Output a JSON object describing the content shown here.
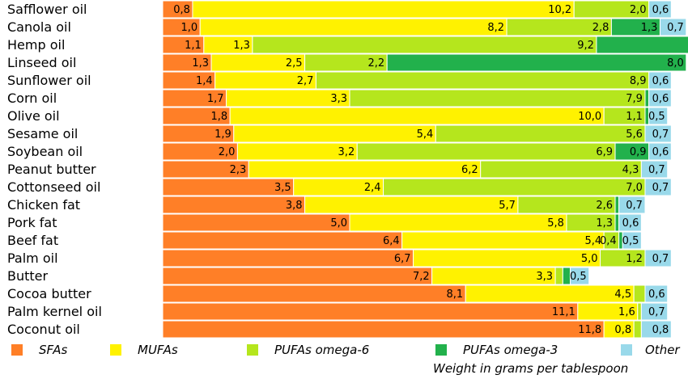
{
  "chart_data": {
    "type": "bar",
    "orientation": "horizontal",
    "stacked": true,
    "xlabel": "Weight in grams per tablespoon",
    "legend_position": "bottom",
    "grid": false,
    "categories": [
      "Safflower oil",
      "Canola oil",
      "Hemp oil",
      "Linseed oil",
      "Sunflower oil",
      "Corn oil",
      "Olive oil",
      "Sesame oil",
      "Soybean oil",
      "Peanut butter",
      "Cottonseed oil",
      "Chicken fat",
      "Pork fat",
      "Beef fat",
      "Palm oil",
      "Butter",
      "Cocoa butter",
      "Palm kernel oil",
      "Coconut oil"
    ],
    "series": [
      {
        "name": "SFAs",
        "color": "#ff7f27",
        "values": [
          0.8,
          1.0,
          1.1,
          1.3,
          1.4,
          1.7,
          1.8,
          1.9,
          2.0,
          2.3,
          3.5,
          3.8,
          5.0,
          6.4,
          6.7,
          7.2,
          8.1,
          11.1,
          11.8
        ],
        "labels": [
          "0,8",
          "1,0",
          "1,1",
          "1,3",
          "1,4",
          "1,7",
          "1,8",
          "1,9",
          "2,0",
          "2,3",
          "3,5",
          "3,8",
          "5,0",
          "6,4",
          "6,7",
          "7,2",
          "8,1",
          "11,1",
          "11,8"
        ]
      },
      {
        "name": "MUFAs",
        "color": "#fff200",
        "values": [
          10.2,
          8.2,
          1.3,
          2.5,
          2.7,
          3.3,
          10.0,
          5.4,
          3.2,
          6.2,
          2.4,
          5.7,
          5.8,
          5.4,
          5.0,
          3.3,
          4.5,
          1.6,
          0.8
        ],
        "labels": [
          "10,2",
          "8,2",
          "1,3",
          "2,5",
          "2,7",
          "3,3",
          "10,0",
          "5,4",
          "3,2",
          "6,2",
          "2,4",
          "5,7",
          "5,8",
          "5,4",
          "5,0",
          "3,3",
          "4,5",
          "1,6",
          "0,8"
        ]
      },
      {
        "name": "PUFAs omega-6",
        "color": "#b5e61d",
        "values": [
          2.0,
          2.8,
          9.2,
          2.2,
          8.9,
          7.9,
          1.1,
          5.6,
          6.9,
          4.3,
          7.0,
          2.6,
          1.3,
          0.4,
          1.2,
          0.2,
          0.3,
          0.1,
          0.2
        ],
        "labels": [
          "2,0",
          "2,8",
          "9,2",
          "2,2",
          "8,9",
          "7,9",
          "1,1",
          "5,6",
          "6,9",
          "4,3",
          "7,0",
          "2,6",
          "1,3",
          "0,4",
          "1,2",
          "",
          "",
          "",
          ""
        ]
      },
      {
        "name": "PUFAs omega-3",
        "color": "#22b14c",
        "values": [
          0,
          1.3,
          3.3,
          8.0,
          0,
          0.1,
          0.1,
          0,
          0.9,
          0,
          0,
          0.1,
          0.1,
          0.1,
          0,
          0.2,
          0,
          0,
          0
        ],
        "labels": [
          "",
          "1,3",
          "3,3",
          "8,0",
          "",
          "",
          "",
          "",
          "0,9",
          "",
          "",
          "",
          "",
          "",
          "",
          "",
          "",
          "",
          ""
        ]
      },
      {
        "name": "Other",
        "color": "#99d9ea",
        "values": [
          0.6,
          0.7,
          0.8,
          0,
          0.6,
          0.6,
          0.5,
          0.7,
          0.6,
          0.7,
          0.7,
          0.7,
          0.6,
          0.5,
          0.7,
          0.5,
          0.6,
          0.7,
          0.8
        ],
        "labels": [
          "0,6",
          "0,7",
          "0,8",
          "",
          "0,6",
          "0,6",
          "0,5",
          "0,7",
          "0,6",
          "0,7",
          "0,7",
          "0,7",
          "0,6",
          "0,5",
          "0,7",
          "0,5",
          "0,6",
          "0,7",
          "0,8"
        ]
      }
    ]
  }
}
